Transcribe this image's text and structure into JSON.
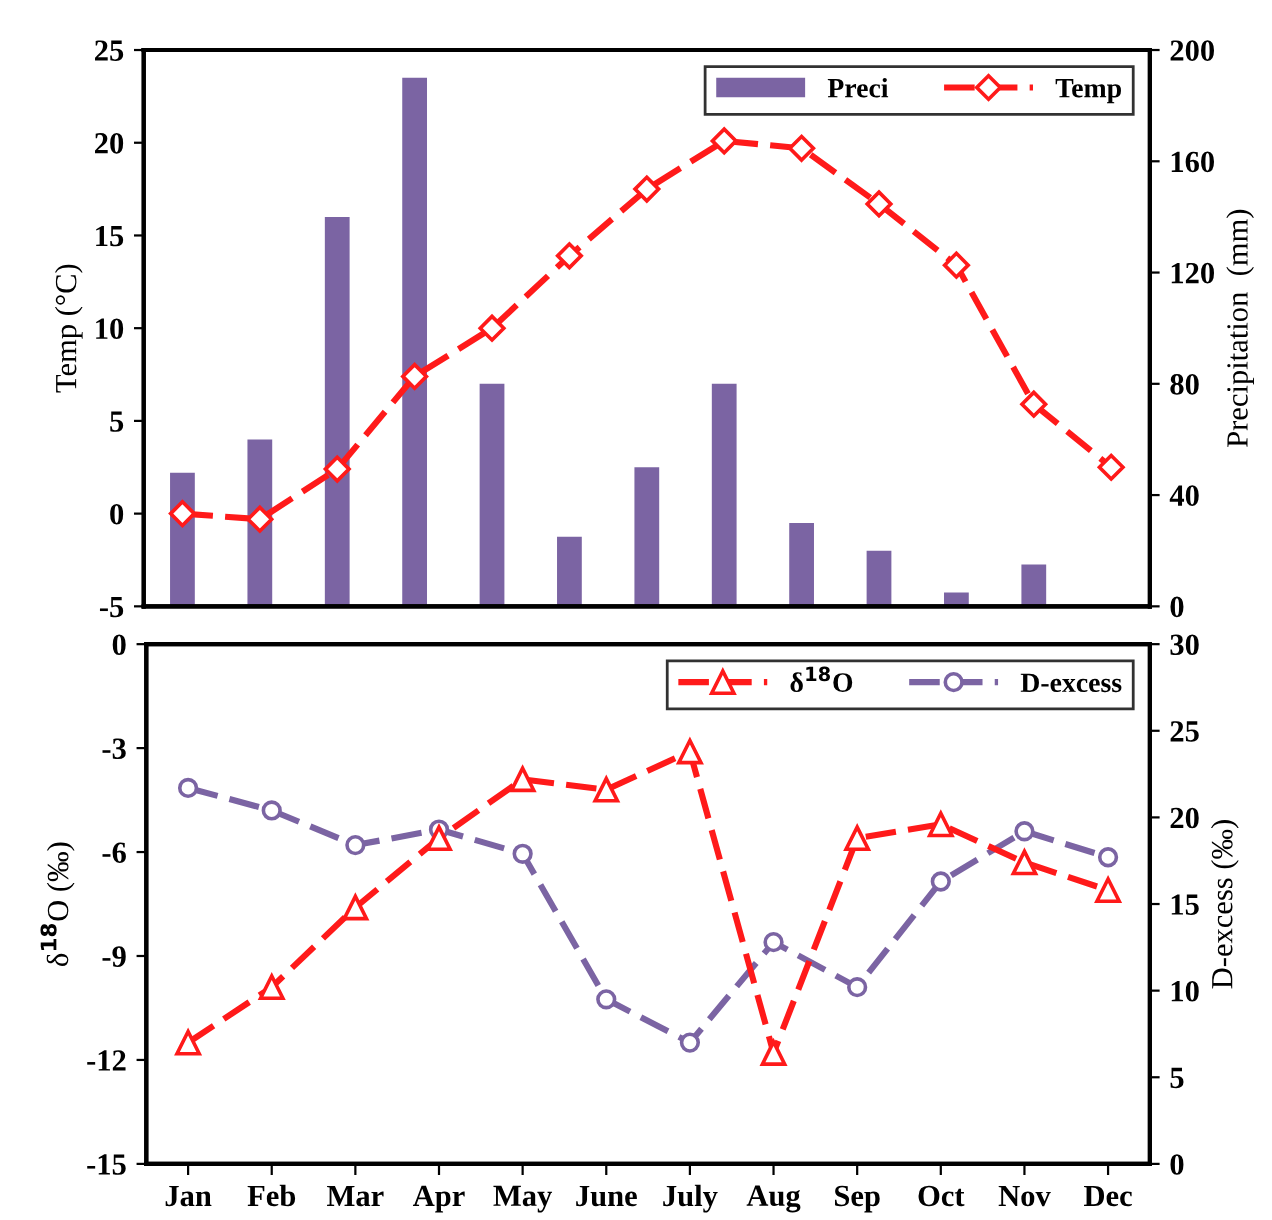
{
  "chart_data": [
    {
      "type": "bar",
      "categories": [
        null,
        null,
        null,
        null,
        null,
        null,
        null,
        null,
        null,
        null,
        null,
        null,
        null
      ],
      "ylabel": "Temp (°C)",
      "y2label": "Precipitation  (mm)",
      "ylim": [
        -5,
        25
      ],
      "yticks": [
        -5,
        0,
        5,
        10,
        15,
        20,
        25
      ],
      "y2lim": [
        0,
        200
      ],
      "y2ticks": [
        0,
        40,
        80,
        120,
        160,
        200
      ],
      "tick_labels": "y",
      "legend": "top right",
      "grid": false,
      "series": [
        {
          "name": "Preci",
          "axis": "y2",
          "color": "#7b64a3",
          "values": [
            48,
            60,
            140,
            190,
            80,
            25,
            50,
            80,
            30,
            20,
            5,
            15,
            null
          ]
        },
        {
          "name": "Temp",
          "type": "line",
          "color": "#ff1a1a",
          "marker": "diamond",
          "line_style": "dashed",
          "values": [
            0,
            -0.3,
            2.4,
            7.4,
            10,
            13.9,
            17.5,
            20.1,
            19.7,
            16.7,
            13.4,
            5.9,
            2.5
          ]
        }
      ]
    },
    {
      "type": "line",
      "categories": [
        "Jan",
        "Feb",
        "Mar",
        "Apr",
        "May",
        "June",
        "July",
        "Aug",
        "Sep",
        "Oct",
        "Nov",
        "Dec"
      ],
      "ylabel": "δ$^{18}$O (‰)",
      "y2label": "D-excess (‰)",
      "ylim": [
        -15,
        0
      ],
      "yticks": [
        -15,
        -12,
        -9,
        -6,
        -3,
        0
      ],
      "y2lim": [
        0,
        30
      ],
      "y2ticks": [
        0,
        5,
        10,
        15,
        20,
        25,
        30
      ],
      "legend": "top right",
      "grid": false,
      "series": [
        {
          "name": "δ$^{18}$O",
          "color": "#ff1a1a",
          "marker": "triangle",
          "line_style": "dashed",
          "values": [
            -11.5,
            -9.9,
            -7.6,
            -5.6,
            -3.9,
            -4.2,
            -3.1,
            -11.8,
            -5.6,
            -5.2,
            -6.3,
            -7.1
          ]
        },
        {
          "name": "D-excess",
          "axis": "y2",
          "color": "#7b64a3",
          "marker": "circle",
          "line_style": "dashed",
          "values": [
            21.7,
            20.4,
            18.4,
            19.3,
            17.9,
            9.5,
            7.0,
            12.8,
            10.2,
            16.3,
            19.2,
            17.7
          ]
        }
      ]
    }
  ]
}
